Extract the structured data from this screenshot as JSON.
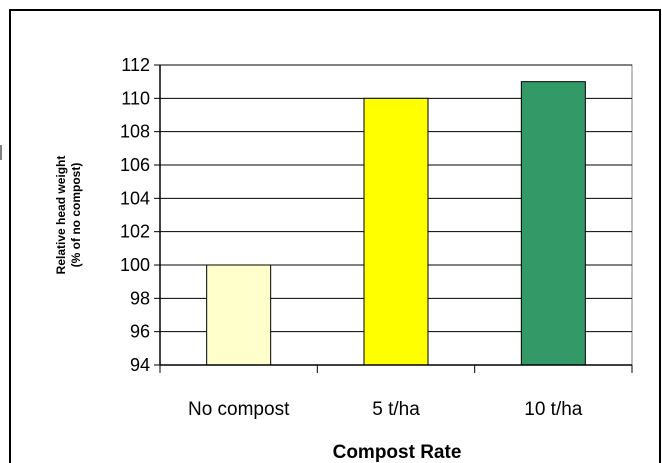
{
  "chart_data": {
    "type": "bar",
    "categories": [
      "No compost",
      "5 t/ha",
      "10 t/ha"
    ],
    "values": [
      100,
      110,
      111
    ],
    "bar_colors": [
      "#ffffcc",
      "#ffff00",
      "#339966"
    ],
    "xlabel": "Compost Rate",
    "ylabel_lines": [
      "Relative head weight",
      "(% of no compost)"
    ],
    "ylim": [
      94,
      112
    ],
    "yticks": [
      "94",
      "96",
      "98",
      "100",
      "102",
      "104",
      "106",
      "108",
      "110",
      "112"
    ],
    "grid": true,
    "plot_background": "#ffffff",
    "grid_color": "#000000"
  }
}
